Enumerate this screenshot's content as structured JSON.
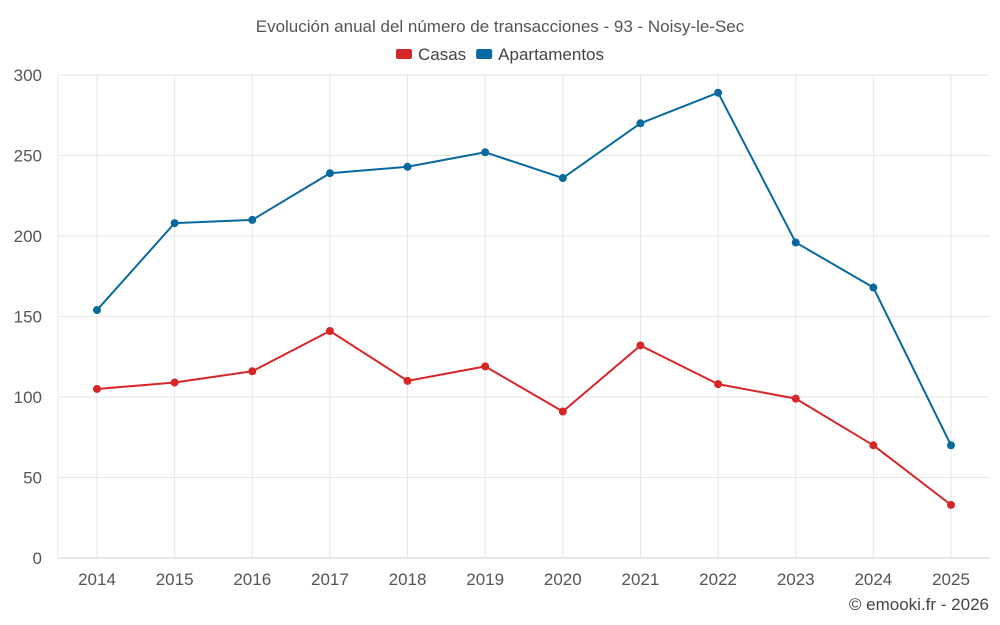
{
  "chart_data": {
    "type": "line",
    "title": "Evolución anual del número de transacciones - 93 - Noisy-le-Sec",
    "xlabel": "",
    "ylabel": "",
    "ylim": [
      0,
      300
    ],
    "yticks": [
      0,
      50,
      100,
      150,
      200,
      250,
      300
    ],
    "categories": [
      "2014",
      "2015",
      "2016",
      "2017",
      "2018",
      "2019",
      "2020",
      "2021",
      "2022",
      "2023",
      "2024",
      "2025"
    ],
    "series": [
      {
        "name": "Casas",
        "color": "#d62728",
        "values": [
          105,
          109,
          116,
          141,
          110,
          119,
          91,
          132,
          108,
          99,
          70,
          33
        ]
      },
      {
        "name": "Apartamentos",
        "color": "#07699e",
        "values": [
          154,
          208,
          210,
          239,
          243,
          252,
          236,
          270,
          289,
          196,
          168,
          70
        ]
      }
    ],
    "legend_position": "top-center",
    "grid": true
  },
  "credit": "© emooki.fr - 2026"
}
